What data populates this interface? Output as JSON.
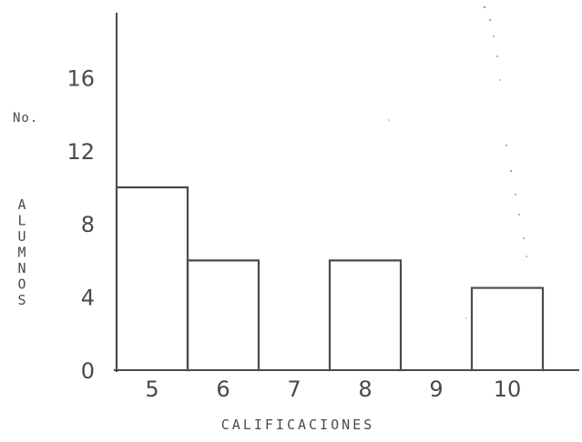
{
  "chart_data": {
    "type": "bar",
    "title": "",
    "xlabel": "CALIFICACIONES",
    "ylabel": "No. ALUMNOS",
    "ylabel_parts": [
      "No.",
      "ALUMNOS"
    ],
    "categories": [
      "5",
      "6",
      "7",
      "8",
      "9",
      "10"
    ],
    "values": [
      10,
      6,
      0,
      6,
      0,
      4.5
    ],
    "ylim": [
      0,
      19.5
    ],
    "yticks": [
      0,
      4,
      8,
      12,
      16
    ],
    "ytick_labels": [
      "0",
      "4",
      "8",
      "12",
      "16"
    ],
    "grid": false,
    "legend": "none",
    "bar_style": "outline",
    "ink_color": "#4a4a4a"
  }
}
